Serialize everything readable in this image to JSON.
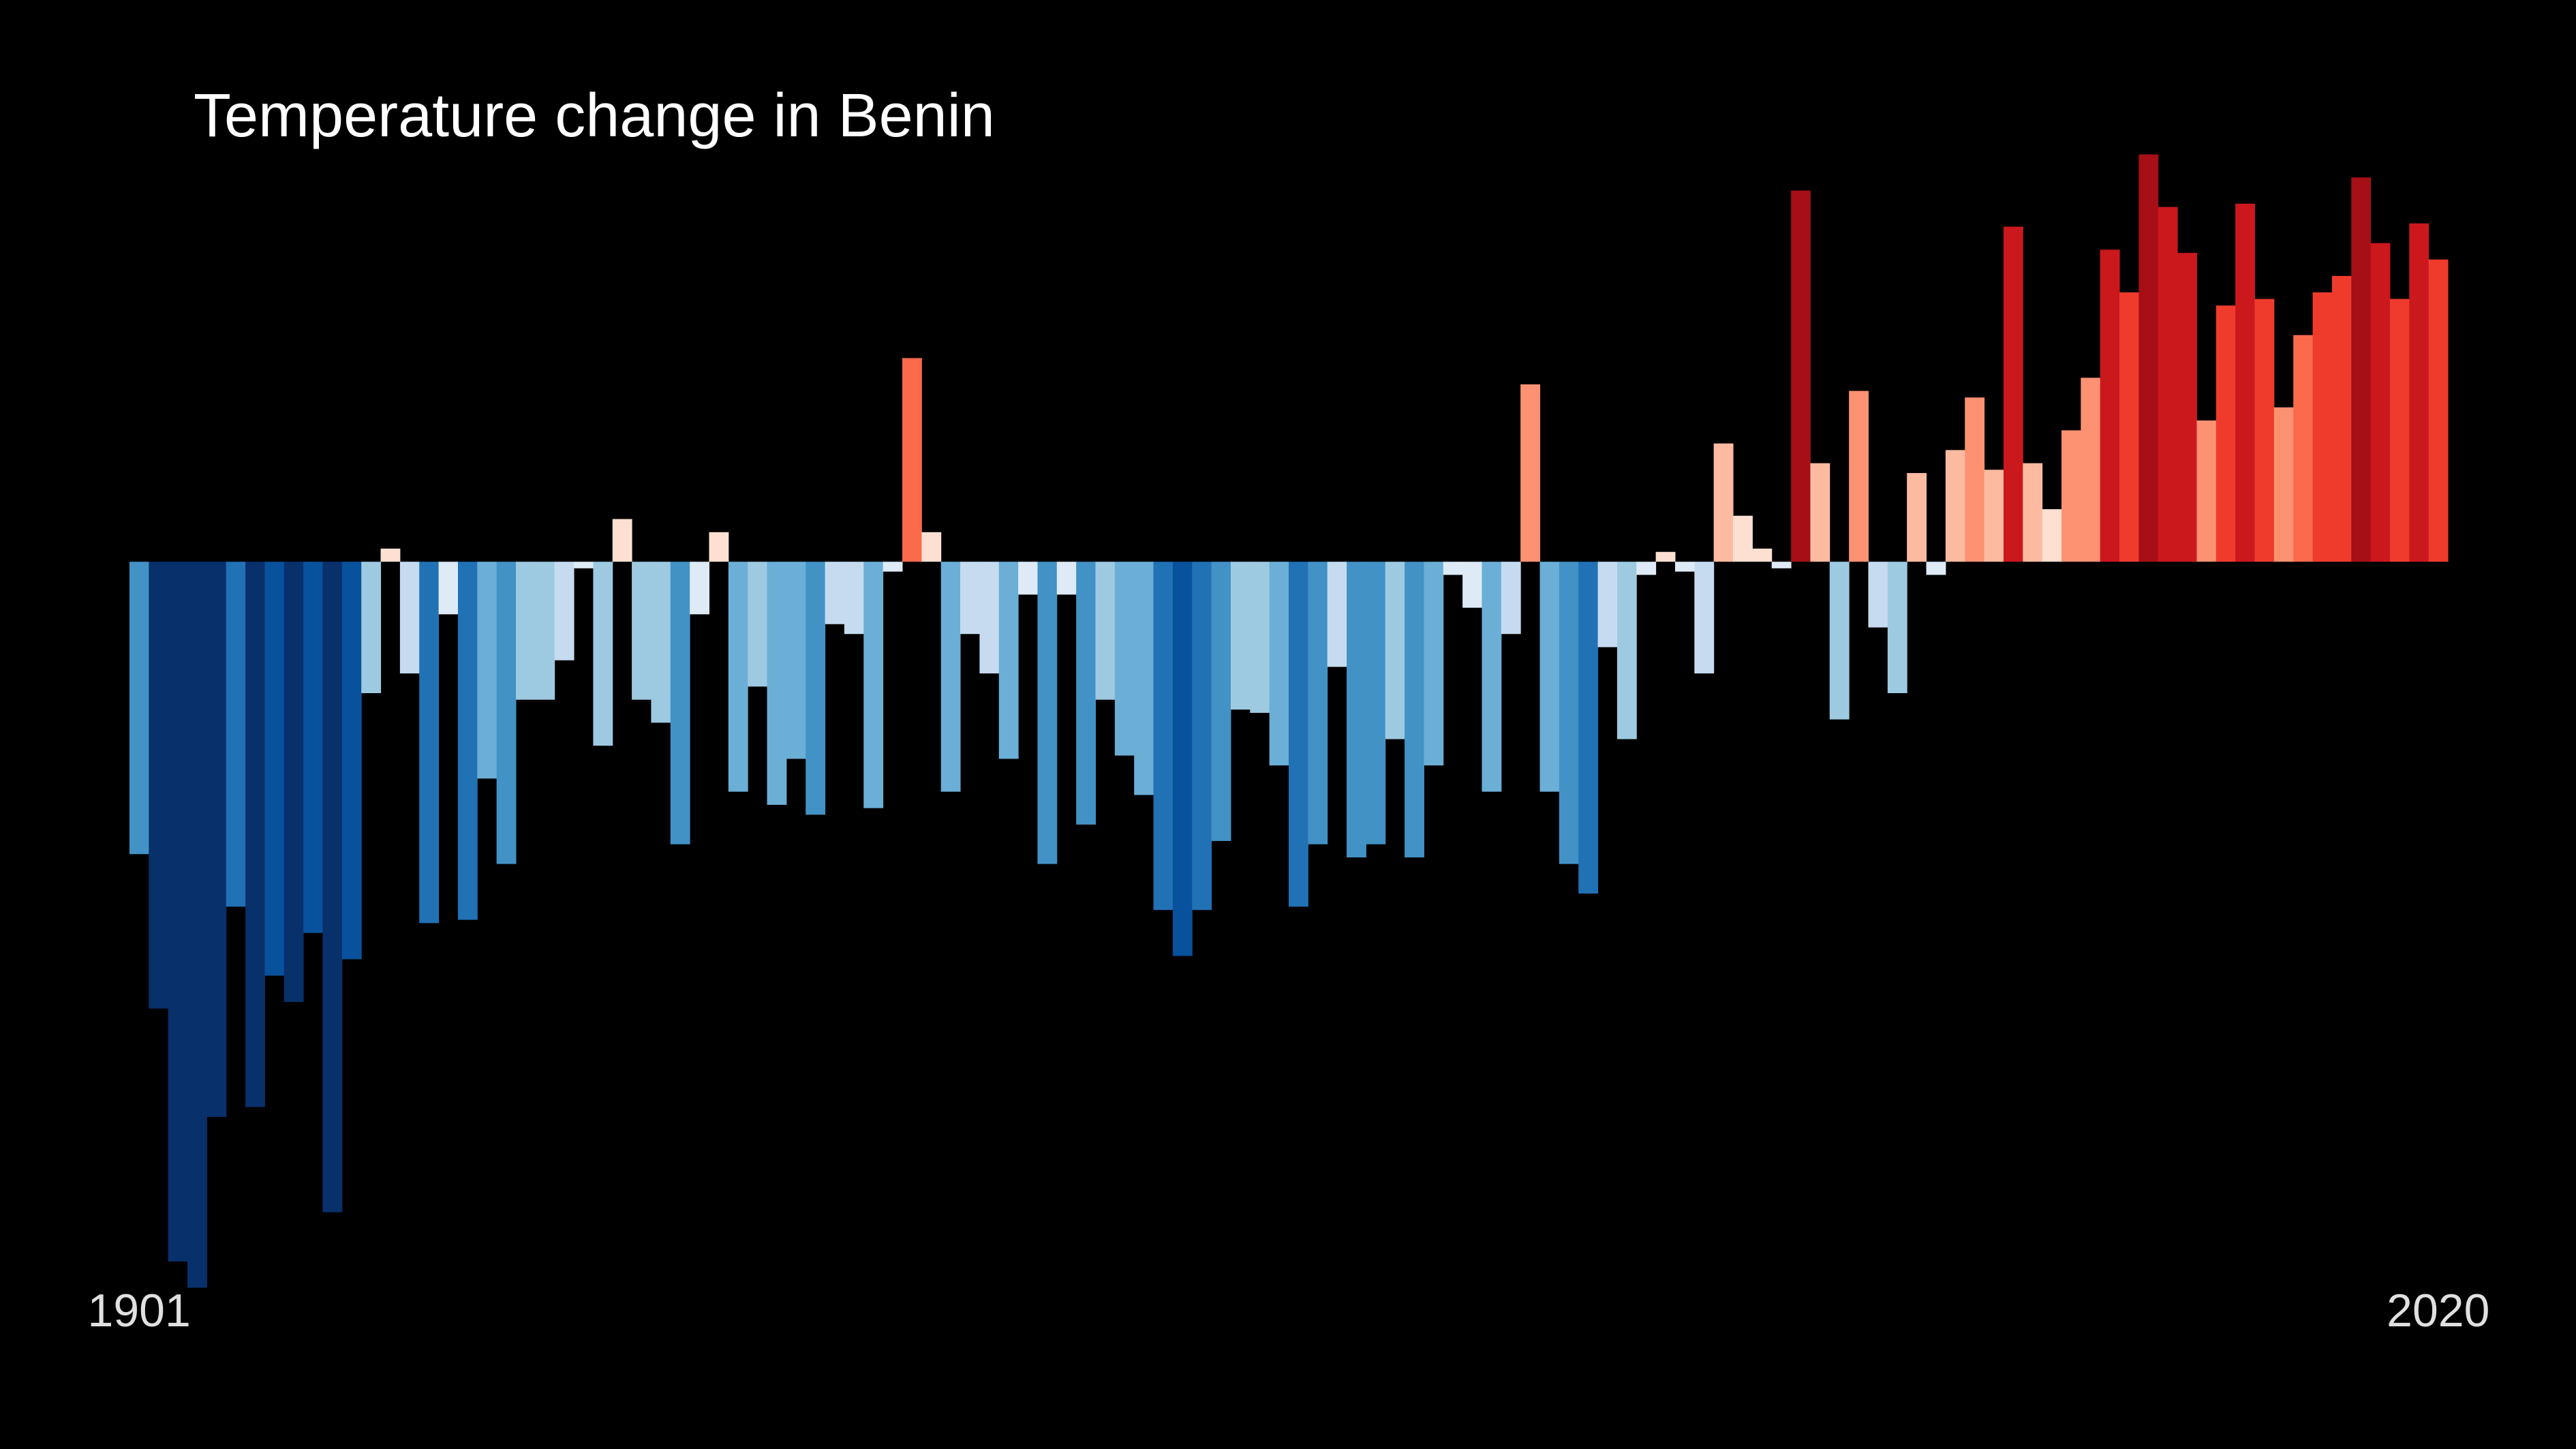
{
  "chart_data": {
    "type": "bar",
    "title": "Temperature change in Benin",
    "x": [
      1901,
      1902,
      1903,
      1904,
      1905,
      1906,
      1907,
      1908,
      1909,
      1910,
      1911,
      1912,
      1913,
      1914,
      1915,
      1916,
      1917,
      1918,
      1919,
      1920,
      1921,
      1922,
      1923,
      1924,
      1925,
      1926,
      1927,
      1928,
      1929,
      1930,
      1931,
      1932,
      1933,
      1934,
      1935,
      1936,
      1937,
      1938,
      1939,
      1940,
      1941,
      1942,
      1943,
      1944,
      1945,
      1946,
      1947,
      1948,
      1949,
      1950,
      1951,
      1952,
      1953,
      1954,
      1955,
      1956,
      1957,
      1958,
      1959,
      1960,
      1961,
      1962,
      1963,
      1964,
      1965,
      1966,
      1967,
      1968,
      1969,
      1970,
      1971,
      1972,
      1973,
      1974,
      1975,
      1976,
      1977,
      1978,
      1979,
      1980,
      1981,
      1982,
      1983,
      1984,
      1985,
      1986,
      1987,
      1988,
      1989,
      1990,
      1991,
      1992,
      1993,
      1994,
      1995,
      1996,
      1997,
      1998,
      1999,
      2000,
      2001,
      2002,
      2003,
      2004,
      2005,
      2006,
      2007,
      2008,
      2009,
      2010,
      2011,
      2012,
      2013,
      2014,
      2015,
      2016,
      2017,
      2018,
      2019,
      2020
    ],
    "values": [
      -0.445,
      -0.68,
      -1.065,
      -1.105,
      -0.845,
      -0.525,
      -0.83,
      -0.63,
      -0.67,
      -0.565,
      -0.99,
      -0.605,
      -0.2,
      0.02,
      -0.17,
      -0.55,
      -0.08,
      -0.545,
      -0.33,
      -0.46,
      -0.21,
      -0.21,
      -0.15,
      -0.01,
      -0.28,
      0.065,
      -0.21,
      -0.245,
      -0.43,
      -0.08,
      0.045,
      -0.35,
      -0.19,
      -0.37,
      -0.3,
      -0.385,
      -0.095,
      -0.11,
      -0.375,
      -0.015,
      0.31,
      0.045,
      -0.35,
      -0.11,
      -0.17,
      -0.3,
      -0.05,
      -0.46,
      -0.05,
      -0.4,
      -0.21,
      -0.295,
      -0.355,
      -0.53,
      -0.6,
      -0.53,
      -0.425,
      -0.225,
      -0.23,
      -0.31,
      -0.525,
      -0.43,
      -0.16,
      -0.45,
      -0.43,
      -0.27,
      -0.45,
      -0.31,
      -0.02,
      -0.07,
      -0.35,
      -0.11,
      0.27,
      -0.35,
      -0.46,
      -0.505,
      -0.13,
      -0.27,
      -0.02,
      0.015,
      -0.015,
      -0.17,
      0.18,
      0.07,
      0.02,
      -0.01,
      0.565,
      0.15,
      -0.24,
      0.26,
      -0.1,
      -0.2,
      0.135,
      -0.02,
      0.17,
      0.25,
      0.14,
      0.51,
      0.15,
      0.08,
      0.2,
      0.28,
      0.475,
      0.41,
      0.62,
      0.54,
      0.47,
      0.215,
      0.39,
      0.545,
      0.4,
      0.235,
      0.345,
      0.41,
      0.435,
      0.585,
      0.485,
      0.4,
      0.515,
      0.46
    ],
    "xlim": [
      1900.5,
      2020.5
    ],
    "ylim": [
      -1.2,
      0.8
    ],
    "colormap": [
      "#08306b",
      "#08519c",
      "#2171b5",
      "#4292c6",
      "#6baed6",
      "#9ecae1",
      "#c6dbef",
      "#deebf7",
      "#fee0d2",
      "#fcbba1",
      "#fc9272",
      "#fb6a4a",
      "#ef3b2c",
      "#cb181d",
      "#a50f15",
      "#67000d"
    ],
    "color_range": [
      -0.75,
      0.75
    ],
    "background": "#000000"
  }
}
